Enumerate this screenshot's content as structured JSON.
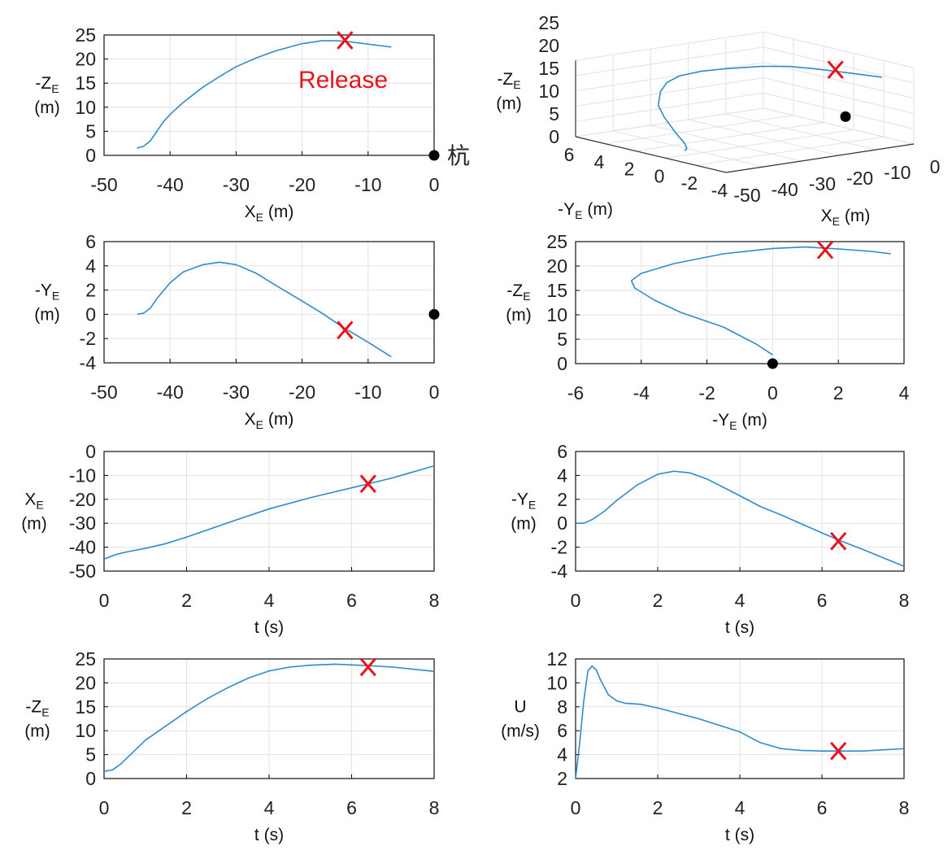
{
  "colors": {
    "line": "#2e8bcc",
    "release": "#e8141c",
    "dot": "#000000",
    "grid": "#e2e2e2"
  },
  "chart_data": [
    {
      "type": "line",
      "grid": true,
      "xlim": [
        -50,
        0
      ],
      "ylim": [
        0,
        25
      ],
      "xticks": [
        -50,
        -40,
        -30,
        -20,
        -10,
        0
      ],
      "yticks": [
        0,
        5,
        10,
        15,
        20,
        25
      ],
      "xlabel": {
        "main": "X",
        "sub": "E",
        "unit": " (m)"
      },
      "ylabel": {
        "main": "-Z",
        "sub": "E",
        "unit": "(m)"
      },
      "series": [
        [
          -45,
          1.5
        ],
        [
          -44,
          1.9
        ],
        [
          -43,
          3
        ],
        [
          -42,
          5
        ],
        [
          -41,
          7
        ],
        [
          -40,
          8.5
        ],
        [
          -38,
          11
        ],
        [
          -35,
          14.2
        ],
        [
          -32,
          16.8
        ],
        [
          -30,
          18.4
        ],
        [
          -27,
          20.2
        ],
        [
          -24,
          21.7
        ],
        [
          -20,
          23.2
        ],
        [
          -17,
          23.8
        ],
        [
          -15,
          23.8
        ],
        [
          -13.5,
          23.7
        ],
        [
          -10,
          23.1
        ],
        [
          -6.5,
          22.5
        ]
      ],
      "release": [
        -13.5,
        23.9
      ],
      "release_text": "Release",
      "dot": [
        0,
        0
      ],
      "dot_label": "杭"
    },
    {
      "type": "line3d",
      "grid": true,
      "xlim": [
        -50,
        0
      ],
      "ylim": [
        -4,
        6
      ],
      "zlim": [
        0,
        25
      ],
      "xticks": [
        -50,
        -40,
        -30,
        -20,
        -10,
        0
      ],
      "yticks": [
        6,
        4,
        2,
        0,
        -2,
        -4
      ],
      "zticks": [
        0,
        5,
        10,
        15,
        20,
        25
      ],
      "xlabel": {
        "main": "X",
        "sub": "E",
        "unit": " (m)"
      },
      "ylabel": {
        "main": "-Y",
        "sub": "E",
        "unit": " (m)"
      },
      "zlabel": {
        "main": "-Z",
        "sub": "E",
        "unit": "(m)"
      },
      "series": [
        [
          -45,
          0,
          1.5
        ],
        [
          -44,
          0.1,
          1.9
        ],
        [
          -43,
          0.5,
          3
        ],
        [
          -42,
          1.3,
          5
        ],
        [
          -40,
          2.6,
          8.5
        ],
        [
          -38,
          3.5,
          11
        ],
        [
          -35,
          4.1,
          14.2
        ],
        [
          -32.5,
          4.3,
          16.5
        ],
        [
          -30,
          4.1,
          18.4
        ],
        [
          -27,
          3.4,
          20.2
        ],
        [
          -24,
          2.4,
          21.7
        ],
        [
          -20,
          1.1,
          23.2
        ],
        [
          -17,
          0.1,
          23.8
        ],
        [
          -14,
          -1.0,
          23.7
        ],
        [
          -10,
          -2.3,
          23.1
        ],
        [
          -6.5,
          -3.5,
          22.5
        ]
      ],
      "release": [
        -13.5,
        -1.3,
        23.7
      ],
      "dot": [
        0,
        0,
        0
      ]
    },
    {
      "type": "line",
      "grid": true,
      "xlim": [
        -50,
        0
      ],
      "ylim": [
        -4,
        6
      ],
      "xticks": [
        -50,
        -40,
        -30,
        -20,
        -10,
        0
      ],
      "yticks": [
        -4,
        -2,
        0,
        2,
        4,
        6
      ],
      "xlabel": {
        "main": "X",
        "sub": "E",
        "unit": " (m)"
      },
      "ylabel": {
        "main": "-Y",
        "sub": "E",
        "unit": "(m)"
      },
      "series": [
        [
          -45,
          0
        ],
        [
          -44,
          0.1
        ],
        [
          -43,
          0.5
        ],
        [
          -42,
          1.3
        ],
        [
          -40,
          2.6
        ],
        [
          -38,
          3.5
        ],
        [
          -35,
          4.1
        ],
        [
          -32.5,
          4.3
        ],
        [
          -30,
          4.1
        ],
        [
          -27,
          3.4
        ],
        [
          -24,
          2.4
        ],
        [
          -20,
          1.1
        ],
        [
          -17,
          0.1
        ],
        [
          -14,
          -1.0
        ],
        [
          -10,
          -2.3
        ],
        [
          -6.5,
          -3.5
        ]
      ],
      "release": [
        -13.5,
        -1.3
      ],
      "dot": [
        0,
        0
      ]
    },
    {
      "type": "line",
      "grid": true,
      "xlim": [
        -6,
        4
      ],
      "ylim": [
        0,
        25
      ],
      "xticks": [
        -6,
        -4,
        -2,
        0,
        2,
        4
      ],
      "yticks": [
        0,
        5,
        10,
        15,
        20,
        25
      ],
      "xlabel": {
        "main": "-Y",
        "sub": "E",
        "unit": " (m)"
      },
      "ylabel": {
        "main": "-Z",
        "sub": "E",
        "unit": "(m)"
      },
      "series": [
        [
          0,
          1.8
        ],
        [
          -0.5,
          4
        ],
        [
          -1.5,
          7.5
        ],
        [
          -2.8,
          10.5
        ],
        [
          -3.6,
          13
        ],
        [
          -4.2,
          15.5
        ],
        [
          -4.3,
          17
        ],
        [
          -4,
          18.5
        ],
        [
          -3,
          20.5
        ],
        [
          -1.5,
          22.5
        ],
        [
          0,
          23.6
        ],
        [
          1,
          23.9
        ],
        [
          2,
          23.5
        ],
        [
          3,
          23
        ],
        [
          3.6,
          22.5
        ]
      ],
      "release": [
        1.6,
        23.3
      ],
      "dot": [
        0,
        0
      ]
    },
    {
      "type": "line",
      "grid": true,
      "xlim": [
        0,
        8
      ],
      "ylim": [
        -50,
        0
      ],
      "xticks": [
        0,
        2,
        4,
        6,
        8
      ],
      "yticks": [
        -50,
        -40,
        -30,
        -20,
        -10,
        0
      ],
      "xlabel": {
        "main": "t (s)",
        "sub": "",
        "unit": ""
      },
      "ylabel": {
        "main": "X",
        "sub": "E",
        "unit": "(m)"
      },
      "series": [
        [
          0,
          -45
        ],
        [
          0.3,
          -43
        ],
        [
          0.6,
          -41.8
        ],
        [
          1,
          -40.5
        ],
        [
          1.5,
          -38.5
        ],
        [
          2,
          -35.8
        ],
        [
          3,
          -29.8
        ],
        [
          4,
          -24
        ],
        [
          5,
          -19.3
        ],
        [
          6,
          -15.2
        ],
        [
          7,
          -11
        ],
        [
          8,
          -6
        ]
      ],
      "release": [
        6.4,
        -13.5
      ]
    },
    {
      "type": "line",
      "grid": true,
      "xlim": [
        0,
        8
      ],
      "ylim": [
        -4,
        6
      ],
      "xticks": [
        0,
        2,
        4,
        6,
        8
      ],
      "yticks": [
        -4,
        -2,
        0,
        2,
        4,
        6
      ],
      "xlabel": {
        "main": "t (s)",
        "sub": "",
        "unit": ""
      },
      "ylabel": {
        "main": "-Y",
        "sub": "E",
        "unit": "(m)"
      },
      "series": [
        [
          0,
          0
        ],
        [
          0.2,
          0
        ],
        [
          0.4,
          0.3
        ],
        [
          0.7,
          1
        ],
        [
          1,
          1.9
        ],
        [
          1.5,
          3.2
        ],
        [
          2,
          4.1
        ],
        [
          2.4,
          4.35
        ],
        [
          2.8,
          4.2
        ],
        [
          3.2,
          3.7
        ],
        [
          4,
          2.3
        ],
        [
          4.5,
          1.4
        ],
        [
          5,
          0.7
        ],
        [
          6,
          -0.8
        ],
        [
          6.4,
          -1.4
        ],
        [
          7,
          -2.2
        ],
        [
          8,
          -3.6
        ]
      ],
      "release": [
        6.4,
        -1.5
      ]
    },
    {
      "type": "line",
      "grid": true,
      "xlim": [
        0,
        8
      ],
      "ylim": [
        0,
        25
      ],
      "xticks": [
        0,
        2,
        4,
        6,
        8
      ],
      "yticks": [
        0,
        5,
        10,
        15,
        20,
        25
      ],
      "xlabel": {
        "main": "t (s)",
        "sub": "",
        "unit": ""
      },
      "ylabel": {
        "main": "-Z",
        "sub": "E",
        "unit": "(m)"
      },
      "series": [
        [
          0,
          1.5
        ],
        [
          0.2,
          1.8
        ],
        [
          0.4,
          3
        ],
        [
          0.7,
          5.5
        ],
        [
          1,
          8
        ],
        [
          1.5,
          11
        ],
        [
          2,
          14
        ],
        [
          2.5,
          16.7
        ],
        [
          3,
          19
        ],
        [
          3.5,
          21
        ],
        [
          4,
          22.5
        ],
        [
          4.5,
          23.3
        ],
        [
          5,
          23.7
        ],
        [
          5.6,
          23.9
        ],
        [
          6.4,
          23.6
        ],
        [
          7,
          23.3
        ],
        [
          8,
          22.4
        ]
      ],
      "release": [
        6.4,
        23.3
      ]
    },
    {
      "type": "line",
      "grid": true,
      "xlim": [
        0,
        8
      ],
      "ylim": [
        2,
        12
      ],
      "xticks": [
        0,
        2,
        4,
        6,
        8
      ],
      "yticks": [
        2,
        4,
        6,
        8,
        10,
        12
      ],
      "xlabel": {
        "main": "t (s)",
        "sub": "",
        "unit": ""
      },
      "ylabel": {
        "main": "U",
        "sub": "",
        "unit": "(m/s)"
      },
      "series": [
        [
          0,
          2
        ],
        [
          0.1,
          5
        ],
        [
          0.2,
          8.5
        ],
        [
          0.3,
          11
        ],
        [
          0.4,
          11.4
        ],
        [
          0.5,
          11.1
        ],
        [
          0.6,
          10.3
        ],
        [
          0.8,
          9
        ],
        [
          1,
          8.5
        ],
        [
          1.2,
          8.3
        ],
        [
          1.6,
          8.2
        ],
        [
          2,
          7.9
        ],
        [
          3,
          7
        ],
        [
          4,
          5.9
        ],
        [
          4.5,
          5
        ],
        [
          5,
          4.5
        ],
        [
          5.5,
          4.35
        ],
        [
          6,
          4.3
        ],
        [
          7,
          4.3
        ],
        [
          8,
          4.5
        ]
      ],
      "release": [
        6.4,
        4.3
      ]
    }
  ]
}
